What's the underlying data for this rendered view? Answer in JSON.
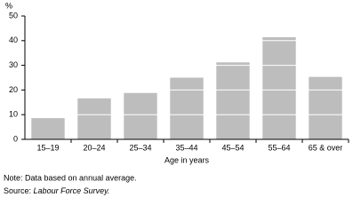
{
  "chart_data": {
    "type": "bar",
    "y_label": "%",
    "x_label": "Age in years",
    "categories": [
      "15–19",
      "20–24",
      "25–34",
      "35–44",
      "45–54",
      "55–64",
      "65 & over"
    ],
    "values": [
      8.6,
      16.6,
      18.8,
      25,
      31.2,
      41.4,
      25.3
    ],
    "color": "#bdbdbd",
    "ylim": [
      0,
      50
    ],
    "yticks": [
      0,
      10,
      20,
      30,
      40,
      50
    ],
    "grid": true,
    "note": "Note: Data based on annual average.",
    "source_label": "Source:",
    "source_text": "Labour Force Survey."
  }
}
